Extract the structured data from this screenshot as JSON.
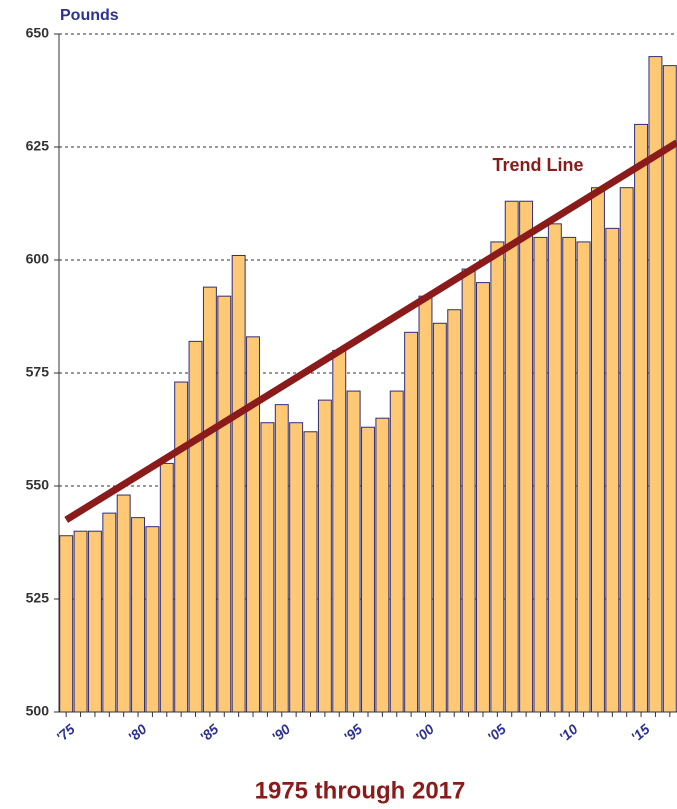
{
  "chart_data": {
    "type": "bar",
    "title": "1975 through 2017",
    "y_label": "Pounds",
    "categories": [
      "'75",
      null,
      null,
      null,
      null,
      "'80",
      null,
      null,
      null,
      null,
      "'85",
      null,
      null,
      null,
      null,
      "'90",
      null,
      null,
      null,
      null,
      "'95",
      null,
      null,
      null,
      null,
      "'00",
      null,
      null,
      null,
      null,
      "'05",
      null,
      null,
      null,
      null,
      "'10",
      null,
      null,
      null,
      null,
      "'15",
      null,
      null
    ],
    "values": [
      539,
      540,
      540,
      544,
      548,
      543,
      541,
      555,
      573,
      582,
      594,
      592,
      601,
      583,
      564,
      568,
      564,
      562,
      569,
      580,
      571,
      563,
      565,
      571,
      584,
      592,
      586,
      589,
      598,
      595,
      604,
      613,
      613,
      605,
      608,
      605,
      604,
      616,
      607,
      616,
      630,
      645,
      643
    ],
    "color": "#ffc875",
    "edge_color": "#2e2e7a",
    "trend": {
      "name": "Trend Line",
      "color": "#8b1a1a",
      "values": [
        542.5,
        625
      ]
    },
    "ylim": [
      500,
      650
    ],
    "yticks": [
      500,
      525,
      550,
      575,
      600,
      625,
      650
    ],
    "grid": true
  }
}
